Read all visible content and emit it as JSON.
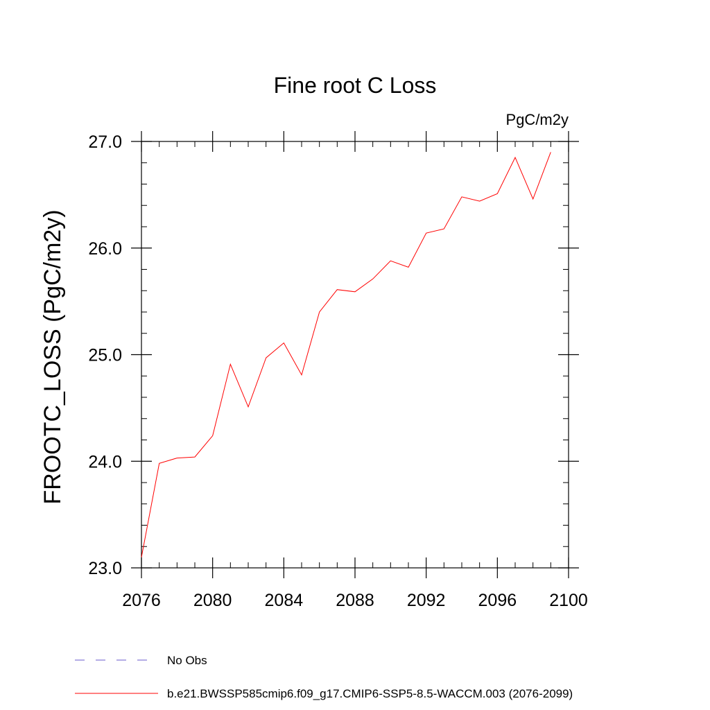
{
  "chart_data": {
    "type": "line",
    "title": "Fine root C Loss",
    "units": "PgC/m2y",
    "ylabel": "FROOTC_LOSS  (PgC/m2y)",
    "xlabel": "",
    "xlim": [
      2076,
      2100
    ],
    "ylim": [
      23.0,
      27.0
    ],
    "x_ticks": [
      2076,
      2080,
      2084,
      2088,
      2092,
      2096,
      2100
    ],
    "x_tick_labels": [
      "2076",
      "2080",
      "2084",
      "2088",
      "2092",
      "2096",
      "2100"
    ],
    "y_ticks": [
      23.0,
      24.0,
      25.0,
      26.0,
      27.0
    ],
    "y_tick_labels": [
      "23.0",
      "24.0",
      "25.0",
      "26.0",
      "27.0"
    ],
    "grid": false,
    "series": [
      {
        "name": "b.e21.BWSSP585cmip6.f09_g17.CMIP6-SSP5-8.5-WACCM.003 (2076-2099)",
        "color": "#ff0000",
        "x": [
          2076,
          2077,
          2078,
          2079,
          2080,
          2081,
          2082,
          2083,
          2084,
          2085,
          2086,
          2087,
          2088,
          2089,
          2090,
          2091,
          2092,
          2093,
          2094,
          2095,
          2096,
          2097,
          2098,
          2099
        ],
        "y": [
          23.1,
          23.98,
          24.03,
          24.04,
          24.24,
          24.91,
          24.51,
          24.97,
          25.11,
          24.81,
          25.4,
          25.61,
          25.59,
          25.71,
          25.88,
          25.82,
          26.14,
          26.18,
          26.48,
          26.44,
          26.51,
          26.85,
          26.46,
          26.9
        ]
      }
    ],
    "legend": {
      "placement": "bottom",
      "entries": [
        {
          "label": "No Obs",
          "color": "#6a5acd",
          "style": "dashed"
        },
        {
          "label": "b.e21.BWSSP585cmip6.f09_g17.CMIP6-SSP5-8.5-WACCM.003 (2076-2099)",
          "color": "#ff0000",
          "style": "solid"
        }
      ]
    }
  }
}
